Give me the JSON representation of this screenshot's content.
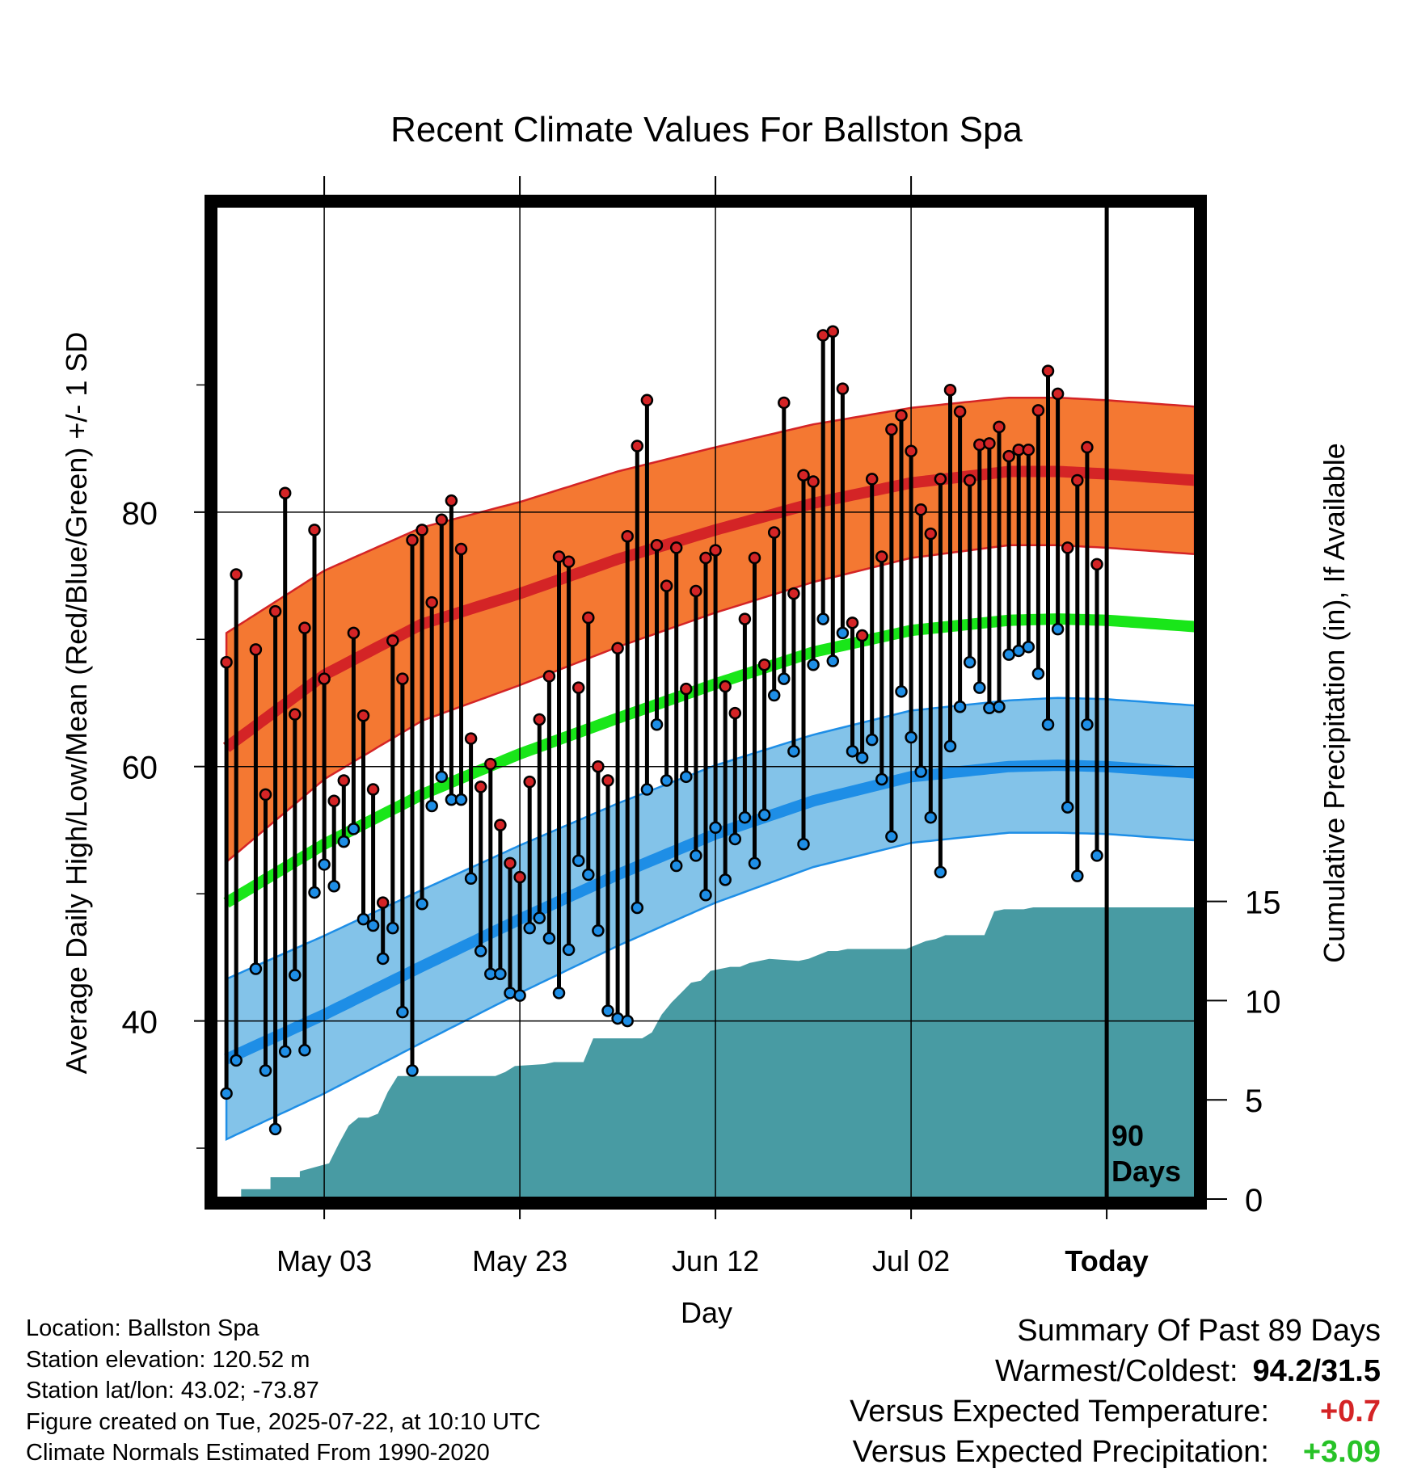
{
  "chart_data": {
    "type": "line",
    "title": "Recent Climate Values For Ballston Spa",
    "xlabel": "Day",
    "ylabel": "Average Daily High/Low/Mean (Red/Blue/Green) +/- 1 SD",
    "y2label": "Cumulative Precipitation (in), If Available",
    "x_ticks": [
      "May 03",
      "May 23",
      "Jun 12",
      "Jul 02",
      "Today"
    ],
    "x_tick_days": [
      10,
      30,
      50,
      70,
      90
    ],
    "xlim": [
      -1,
      99
    ],
    "ylim": [
      26,
      104
    ],
    "y_ticks": [
      40,
      60,
      80
    ],
    "y_minor_ticks": [
      30,
      50,
      70,
      90
    ],
    "y2lim": [
      0,
      50
    ],
    "y2_ticks": [
      0,
      5,
      10,
      15
    ],
    "today_marker": "90\nDays",
    "colors": {
      "high_band": "#f47832",
      "high_line": "#d42426",
      "low_band": "#83c3e9",
      "low_line": "#1e8ee6",
      "mean_line": "#19e619",
      "precip": "#489ba3"
    },
    "normals": {
      "day": [
        0,
        10,
        20,
        30,
        40,
        50,
        60,
        70,
        80,
        85,
        90,
        99
      ],
      "high_mean": [
        61.5,
        67.2,
        71.2,
        73.6,
        76.3,
        78.6,
        80.7,
        82.3,
        83.2,
        83.2,
        83.0,
        82.5
      ],
      "high_sd": [
        9.0,
        8.2,
        7.6,
        7.2,
        6.9,
        6.5,
        6.2,
        5.9,
        5.8,
        5.8,
        5.8,
        5.8
      ],
      "low_mean": [
        37.0,
        40.5,
        44.3,
        48.0,
        51.5,
        54.7,
        57.3,
        59.2,
        60.0,
        60.1,
        60.0,
        59.5
      ],
      "low_sd": [
        6.3,
        6.2,
        6.0,
        5.8,
        5.6,
        5.4,
        5.2,
        5.2,
        5.2,
        5.3,
        5.3,
        5.3
      ],
      "mean": [
        49.3,
        53.9,
        57.8,
        61.0,
        63.8,
        66.5,
        69.0,
        70.7,
        71.5,
        71.6,
        71.5,
        71.0
      ]
    },
    "daily": {
      "day": [
        0,
        1,
        3,
        4,
        5,
        6,
        7,
        8,
        9,
        10,
        11,
        12,
        13,
        14,
        15,
        16,
        17,
        18,
        19,
        20,
        21,
        22,
        23,
        24,
        25,
        26,
        27,
        28,
        29,
        30,
        31,
        32,
        33,
        34,
        35,
        36,
        37,
        38,
        39,
        40,
        41,
        42,
        43,
        44,
        45,
        46,
        47,
        48,
        49,
        50,
        51,
        52,
        53,
        54,
        55,
        56,
        57,
        58,
        59,
        60,
        61,
        62,
        63,
        64,
        65,
        66,
        67,
        68,
        69,
        70,
        71,
        72,
        73,
        74,
        75,
        76,
        77,
        78,
        79,
        80,
        81,
        82,
        83,
        84,
        85,
        86,
        87,
        88,
        89
      ],
      "high": [
        68.2,
        75.1,
        69.2,
        57.8,
        72.2,
        81.5,
        64.1,
        70.9,
        78.6,
        66.9,
        57.3,
        58.9,
        70.5,
        64.0,
        58.2,
        49.3,
        69.9,
        66.9,
        77.8,
        78.6,
        72.9,
        79.4,
        80.9,
        77.1,
        62.2,
        58.4,
        60.2,
        55.4,
        52.4,
        51.3,
        58.8,
        63.7,
        67.1,
        76.5,
        76.1,
        66.2,
        71.7,
        60.0,
        58.9,
        69.3,
        78.1,
        85.2,
        88.8,
        77.4,
        74.2,
        77.2,
        66.1,
        73.8,
        76.4,
        77.0,
        66.3,
        64.2,
        71.6,
        76.4,
        68.0,
        78.4,
        88.6,
        73.6,
        82.9,
        82.4,
        93.9,
        94.2,
        89.7,
        71.3,
        70.3,
        82.6,
        76.5,
        86.5,
        87.6,
        84.8,
        80.2,
        78.3,
        82.6,
        89.6,
        87.9,
        82.5,
        85.3,
        85.4,
        86.7,
        84.4,
        84.9,
        84.9,
        88.0,
        91.1,
        89.3,
        77.2,
        82.5,
        85.1,
        75.9
      ],
      "low": [
        34.3,
        36.9,
        44.1,
        36.1,
        31.5,
        37.6,
        43.6,
        37.7,
        50.1,
        52.3,
        50.6,
        54.1,
        55.1,
        48.0,
        47.5,
        44.9,
        47.3,
        40.7,
        36.1,
        49.2,
        56.9,
        59.2,
        57.4,
        57.4,
        51.2,
        45.5,
        43.7,
        43.7,
        42.2,
        42.0,
        47.3,
        48.1,
        46.5,
        42.2,
        45.6,
        52.6,
        51.5,
        47.1,
        40.8,
        40.2,
        40.0,
        48.9,
        58.2,
        63.3,
        58.9,
        52.2,
        59.2,
        53.0,
        49.9,
        55.2,
        51.1,
        54.3,
        56.0,
        52.4,
        56.2,
        65.6,
        66.9,
        61.2,
        53.9,
        68.0,
        71.6,
        68.3,
        70.5,
        61.2,
        60.7,
        62.1,
        59.0,
        54.5,
        65.9,
        62.3,
        59.6,
        56.0,
        51.7,
        61.6,
        64.7,
        68.2,
        66.2,
        64.6,
        64.7,
        68.8,
        69.1,
        69.4,
        67.3,
        63.3,
        70.8,
        56.8,
        51.4,
        63.3,
        53.0
      ]
    },
    "precip": {
      "day": [
        -1,
        1.5,
        1.5,
        4.5,
        4.5,
        7.5,
        7.5,
        10.5,
        11.5,
        12.5,
        13.5,
        14.5,
        15.5,
        16.5,
        17.5,
        27.5,
        28.5,
        29.5,
        32.5,
        33.5,
        36.5,
        37.5,
        42.5,
        43.5,
        44.5,
        45.5,
        46.5,
        47.5,
        48.5,
        49.5,
        50.5,
        51.5,
        52.5,
        53.5,
        54.5,
        55.5,
        58.5,
        59.5,
        60.5,
        61.5,
        62.5,
        63.5,
        69.5,
        70.5,
        71.5,
        72.5,
        73.5,
        74.5,
        77.5,
        78.5,
        79.5,
        80.5,
        81.5,
        82.5,
        83.5,
        84.5,
        99
      ],
      "inches": [
        0,
        0,
        0.5,
        0.5,
        1.1,
        1.1,
        1.4,
        1.8,
        2.8,
        3.7,
        4.1,
        4.1,
        4.3,
        5.4,
        6.2,
        6.2,
        6.4,
        6.7,
        6.8,
        6.9,
        6.9,
        8.1,
        8.1,
        8.4,
        9.3,
        9.9,
        10.4,
        10.9,
        11.0,
        11.5,
        11.6,
        11.7,
        11.7,
        11.9,
        12.0,
        12.1,
        12.0,
        12.1,
        12.3,
        12.5,
        12.5,
        12.6,
        12.6,
        12.8,
        13.0,
        13.1,
        13.3,
        13.3,
        13.3,
        14.5,
        14.6,
        14.6,
        14.6,
        14.7,
        14.7,
        14.7,
        14.7
      ]
    }
  },
  "info": {
    "location": "Location: Ballston Spa",
    "elevation": "Station elevation: 120.52 m",
    "latlon": "Station lat/lon: 43.02; -73.87",
    "created": "Figure created on Tue, 2025-07-22, at 10:10 UTC",
    "normals_note": "Climate Normals Estimated From 1990-2020"
  },
  "summary": {
    "heading": "Summary Of Past 89 Days",
    "warm_cold_label": "Warmest/Coldest:",
    "warm_cold_value": "94.2/31.5",
    "temp_label": "Versus Expected Temperature:",
    "temp_value": "+0.7",
    "precip_label": "Versus Expected Precipitation:",
    "precip_value": "+3.09",
    "temp_color": "#d42426",
    "precip_color": "#27c227"
  }
}
